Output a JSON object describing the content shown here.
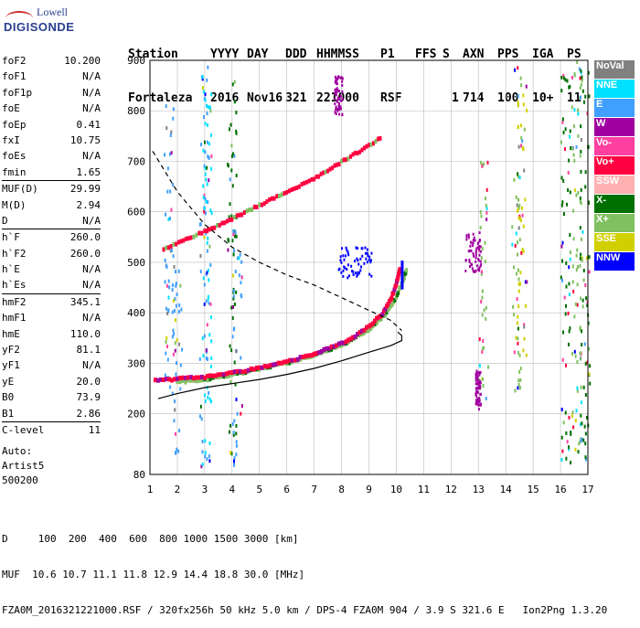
{
  "logo": {
    "line1": "Lowell",
    "line2": "DIGISONDE"
  },
  "header": {
    "row1": [
      "Station",
      "YYYY",
      "DAY",
      "DDD",
      "HHMMSS",
      "P1",
      "FFS",
      "S",
      "AXN",
      "PPS",
      "IGA",
      "PS"
    ],
    "row2": [
      "Fortaleza",
      "2016",
      "Nov16",
      "321",
      "221000",
      "RSF",
      "1",
      "714",
      "100",
      "10+",
      "11"
    ]
  },
  "params": [
    {
      "k": "foF2",
      "v": "10.200"
    },
    {
      "k": "foF1",
      "v": "N/A"
    },
    {
      "k": "foF1p",
      "v": "N/A"
    },
    {
      "k": "foE",
      "v": "N/A"
    },
    {
      "k": "foEp",
      "v": "0.41"
    },
    {
      "k": "fxI",
      "v": "10.75"
    },
    {
      "k": "foEs",
      "v": "N/A"
    },
    {
      "k": "fmin",
      "v": "1.65"
    },
    {
      "k": "MUF(D)",
      "v": "29.99",
      "sep": true
    },
    {
      "k": "M(D)",
      "v": "2.94"
    },
    {
      "k": "D",
      "v": "N/A"
    },
    {
      "k": "h`F",
      "v": "260.0",
      "sep": true
    },
    {
      "k": "h`F2",
      "v": "260.0"
    },
    {
      "k": "h`E",
      "v": "N/A"
    },
    {
      "k": "h`Es",
      "v": "N/A"
    },
    {
      "k": "hmF2",
      "v": "345.1",
      "sep": true
    },
    {
      "k": "hmF1",
      "v": "N/A"
    },
    {
      "k": "hmE",
      "v": "110.0"
    },
    {
      "k": "yF2",
      "v": "81.1"
    },
    {
      "k": "yF1",
      "v": "N/A"
    },
    {
      "k": "yE",
      "v": "20.0"
    },
    {
      "k": "B0",
      "v": "73.9"
    },
    {
      "k": "B1",
      "v": "2.86"
    },
    {
      "k": "C-level",
      "v": "11",
      "sep": true
    }
  ],
  "auto": {
    "line1": "Auto:",
    "line2": "Artist5",
    "line3": "500200"
  },
  "footer": {
    "d_line": "D     100  200  400  600  800 1000 1500 3000 [km]",
    "muf_line": "MUF  10.6 10.7 11.1 11.8 12.9 14.4 18.8 30.0 [MHz]",
    "file_line": "FZA0M_2016321221000.RSF / 320fx256h 50 kHz 5.0 km / DPS-4 FZA0M 904 / 3.9 S 321.6 E   Ion2Png 1.3.20"
  },
  "legend": [
    {
      "label": "NoVal",
      "color": "#808080"
    },
    {
      "label": "NNE",
      "color": "#00e0ff"
    },
    {
      "label": "E",
      "color": "#40a0ff"
    },
    {
      "label": "W",
      "color": "#a000a0"
    },
    {
      "label": "Vo-",
      "color": "#ff40a0"
    },
    {
      "label": "Vo+",
      "color": "#ff0040"
    },
    {
      "label": "SSW",
      "color": "#ffb0b0"
    },
    {
      "label": "X-",
      "color": "#007000"
    },
    {
      "label": "X+",
      "color": "#80c060"
    },
    {
      "label": "SSE",
      "color": "#d0d000"
    },
    {
      "label": "NNW",
      "color": "#0000ff"
    }
  ],
  "chart_data": {
    "type": "scatter",
    "xlabel": "",
    "ylabel": "",
    "xlim": [
      1,
      17
    ],
    "ylim": [
      80,
      900
    ],
    "x_ticks": [
      1,
      2,
      3,
      4,
      5,
      6,
      7,
      8,
      9,
      10,
      11,
      12,
      13,
      14,
      15,
      16,
      17
    ],
    "y_ticks": [
      80,
      200,
      300,
      400,
      500,
      600,
      700,
      800,
      900
    ],
    "o_trace": [
      [
        1.2,
        265
      ],
      [
        2,
        268
      ],
      [
        3,
        272
      ],
      [
        4,
        280
      ],
      [
        5,
        290
      ],
      [
        6,
        302
      ],
      [
        7,
        318
      ],
      [
        8,
        338
      ],
      [
        8.5,
        352
      ],
      [
        9,
        372
      ],
      [
        9.5,
        398
      ],
      [
        9.8,
        425
      ],
      [
        10.0,
        455
      ],
      [
        10.15,
        490
      ]
    ],
    "o_upper": [
      [
        1.5,
        525
      ],
      [
        2.5,
        548
      ],
      [
        3,
        560
      ],
      [
        4,
        585
      ],
      [
        5,
        612
      ],
      [
        6,
        638
      ],
      [
        7,
        665
      ],
      [
        8,
        698
      ],
      [
        9,
        730
      ],
      [
        9.5,
        748
      ]
    ],
    "x_trace": [
      [
        2,
        262
      ],
      [
        3,
        267
      ],
      [
        4,
        276
      ],
      [
        5,
        288
      ],
      [
        6,
        300
      ],
      [
        7,
        315
      ],
      [
        8,
        335
      ],
      [
        9,
        365
      ],
      [
        9.6,
        395
      ],
      [
        10.0,
        430
      ],
      [
        10.3,
        470
      ],
      [
        10.4,
        490
      ]
    ],
    "profile_solid": [
      [
        1.3,
        230
      ],
      [
        2,
        240
      ],
      [
        3,
        252
      ],
      [
        4,
        260
      ],
      [
        5,
        268
      ],
      [
        6,
        278
      ],
      [
        7,
        290
      ],
      [
        8,
        305
      ],
      [
        9,
        322
      ],
      [
        9.8,
        335
      ],
      [
        10.2,
        345
      ],
      [
        10.2,
        355
      ],
      [
        10.05,
        362
      ]
    ],
    "profile_dashed": [
      [
        1.1,
        720
      ],
      [
        2,
        640
      ],
      [
        3,
        575
      ],
      [
        4,
        530
      ],
      [
        5,
        500
      ],
      [
        6,
        475
      ],
      [
        7,
        455
      ],
      [
        8,
        430
      ],
      [
        9,
        405
      ],
      [
        9.8,
        385
      ],
      [
        10.2,
        365
      ]
    ],
    "series": [
      {
        "name": "Vo+",
        "color": "#ff0040"
      },
      {
        "name": "X+",
        "color": "#80c060"
      }
    ]
  }
}
